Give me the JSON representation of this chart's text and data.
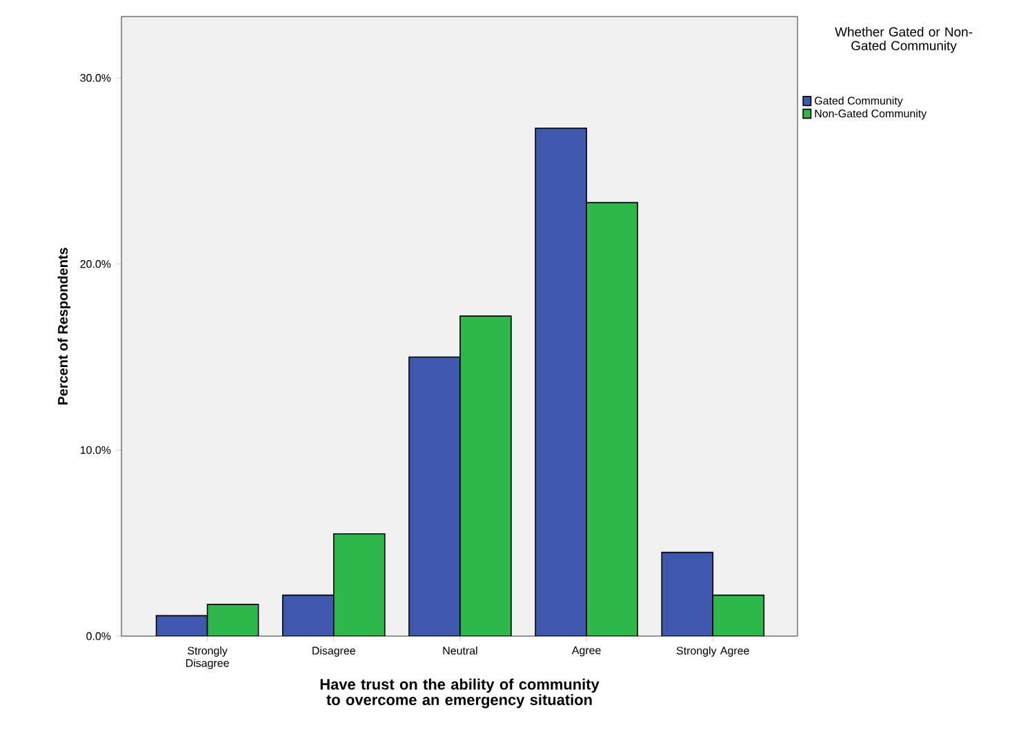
{
  "chart_data": {
    "type": "bar",
    "xlabel": "Have trust on the ability of community to overcome an emergency situation",
    "ylabel": "Percent of Respondents",
    "legend_title": "Whether Gated or Non-Gated Community",
    "categories": [
      "Strongly Disagree",
      "Disagree",
      "Neutral",
      "Agree",
      "Strongly Agree"
    ],
    "series": [
      {
        "name": "Gated Community",
        "color": "#3e58ac",
        "values": [
          1.1,
          2.2,
          15.0,
          27.3,
          4.5
        ]
      },
      {
        "name": "Non-Gated Community",
        "color": "#2fb84a",
        "values": [
          1.7,
          5.5,
          17.2,
          23.3,
          2.2
        ]
      }
    ],
    "ylim": [
      0,
      33.3
    ],
    "yticks": [
      {
        "value": 0,
        "label": "0.0%"
      },
      {
        "value": 10,
        "label": "10.0%"
      },
      {
        "value": 20,
        "label": "20.0%"
      },
      {
        "value": 30,
        "label": "30.0%"
      }
    ],
    "grid": false,
    "legend": "top right"
  }
}
